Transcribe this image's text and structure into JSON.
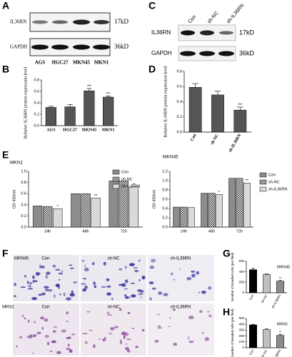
{
  "panel_labels": [
    "A",
    "B",
    "C",
    "D",
    "E",
    "F",
    "G",
    "H"
  ],
  "blot_A": {
    "rows": [
      "IL36RN",
      "GAPDH"
    ],
    "sizes": [
      "17kD",
      "36kD"
    ],
    "lanes": [
      "AGS",
      "HGC27",
      "MKN45",
      "MKN1"
    ]
  },
  "blot_C": {
    "rows": [
      "IL36RN",
      "GAPDH"
    ],
    "sizes": [
      "17kD",
      "36kD"
    ],
    "lanes": [
      "Con",
      "sh-NC",
      "sh-IL36RN"
    ]
  },
  "panel_F": {
    "rows": [
      "MKN45",
      "MKN1"
    ],
    "columns": [
      "Con",
      "sh-NC",
      "sh-IL36RN"
    ]
  },
  "chart_data": [
    {
      "type": "bar",
      "y_label": "Relative IL36RN protein expression level",
      "categories": [
        "AGS",
        "HGC27",
        "MKN45",
        "MKN1"
      ],
      "values": [
        0.32,
        0.33,
        0.61,
        0.5
      ],
      "errors": [
        0.02,
        0.04,
        0.04,
        0.02
      ],
      "significance": [
        null,
        null,
        "**",
        "**"
      ],
      "color": "#555555",
      "ylim": [
        0,
        0.8
      ],
      "yticks": [
        {
          "value": 0,
          "label": "0.0"
        },
        0.2,
        0.4,
        0.6,
        0.8
      ]
    },
    {
      "type": "bar",
      "y_label": "Relative IL36RN protein expression level",
      "categories": [
        "Con",
        "sh-NC",
        "sh-IL36RN"
      ],
      "values": [
        0.59,
        0.49,
        0.29
      ],
      "errors": [
        0.05,
        0.05,
        0.04
      ],
      "significance": [
        null,
        null,
        "**"
      ],
      "color": "#555555",
      "ylim": [
        0,
        0.8
      ],
      "yticks": [
        {
          "value": 0,
          "label": "0.0"
        },
        0.2,
        0.4,
        0.6,
        0.8
      ]
    },
    {
      "type": "grouped_bar",
      "title": "MKN1",
      "y_label": "OD 450nm",
      "categories": [
        "24h",
        "48h",
        "72h"
      ],
      "series": [
        {
          "name": "Con",
          "color": "#8c8c8c",
          "values": [
            0.38,
            0.6,
            0.83
          ]
        },
        {
          "name": "sh-NC",
          "color": "#ffffff",
          "pattern": "checker",
          "values": [
            0.37,
            0.6,
            0.83
          ]
        },
        {
          "name": "sh-IL36RN",
          "color": "#d9d9d9",
          "values": [
            0.33,
            0.52,
            0.72
          ],
          "significance": [
            "*",
            "**",
            "**"
          ]
        }
      ],
      "ylim": [
        0,
        1
      ],
      "yticks": [
        {
          "value": 0,
          "label": "0.0"
        },
        0.2,
        0.4,
        0.6,
        0.8,
        {
          "value": 1,
          "label": "1.0"
        }
      ]
    },
    {
      "type": "grouped_bar",
      "title": "MKN45",
      "y_label": "OD 450nm",
      "categories": [
        "24h",
        "48h",
        "72h"
      ],
      "series": [
        {
          "name": "Con",
          "color": "#8c8c8c",
          "values": [
            0.43,
            0.73,
            1.05
          ]
        },
        {
          "name": "sh-NC",
          "color": "#ffffff",
          "pattern": "checker",
          "values": [
            0.43,
            0.73,
            1.05
          ]
        },
        {
          "name": "sh-IL36RN",
          "color": "#d9d9d9",
          "values": [
            0.42,
            0.7,
            0.95
          ],
          "significance": [
            null,
            "*",
            "**"
          ]
        }
      ],
      "ylim": [
        0,
        1.2
      ],
      "yticks": [
        {
          "value": 0,
          "label": "0.0"
        },
        0.2,
        0.4,
        0.6,
        0.8,
        {
          "value": 1,
          "label": "1.0"
        },
        1.2
      ]
    },
    {
      "type": "bar",
      "title": "MKN45",
      "y_label": "Number of invaded cells (per filed)",
      "categories": [
        "Con",
        "sh-NC",
        "sh-IL36RN"
      ],
      "values": [
        440,
        350,
        220
      ],
      "errors": [
        25,
        10,
        15
      ],
      "significance": [
        null,
        null,
        "**"
      ],
      "colors": [
        "#000000",
        "#bfbfbf",
        "#8c8c8c"
      ],
      "ylim": [
        0,
        600
      ],
      "yticks": [
        0,
        200,
        400,
        600
      ]
    },
    {
      "type": "bar",
      "title": "MKN1",
      "y_label": "Number of invaded cells (per filed)",
      "categories": [
        "Con",
        "sh-NC",
        "sh-IL36RN"
      ],
      "values": [
        390,
        310,
        210
      ],
      "errors": [
        10,
        10,
        20
      ],
      "significance": [
        null,
        null,
        "**"
      ],
      "colors": [
        "#000000",
        "#bfbfbf",
        "#8c8c8c"
      ],
      "ylim": [
        0,
        500
      ],
      "yticks": [
        0,
        100,
        200,
        300,
        400,
        500
      ]
    }
  ]
}
